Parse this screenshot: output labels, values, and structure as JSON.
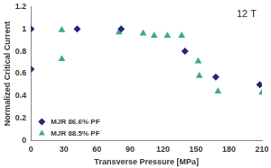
{
  "chart_data": {
    "type": "scatter",
    "annotation": "12 T",
    "x_label": "Transverse Pressure [MPa]",
    "y_label": "Normalized Critical Current",
    "xlim": [
      0,
      210
    ],
    "xticks": [
      0,
      30,
      60,
      90,
      120,
      150,
      180,
      210
    ],
    "ylim": [
      0,
      1.2
    ],
    "yticks": [
      0,
      0.2,
      0.4,
      0.6,
      0.8,
      1,
      1.2
    ],
    "grid": false,
    "legend": "lower left",
    "series": [
      {
        "name": "MJR 86.6% PF",
        "color": "#24247a",
        "marker": "diamond",
        "x": [
          0,
          0,
          42,
          82,
          140,
          168,
          208
        ],
        "values": [
          1.0,
          0.64,
          1.0,
          1.0,
          0.8,
          0.57,
          0.5
        ]
      },
      {
        "name": "MJR 88.5% PF",
        "color": "#3fa98a",
        "marker": "triangle",
        "x": [
          28,
          28,
          80,
          102,
          112,
          124,
          137,
          152,
          153,
          170,
          210
        ],
        "values": [
          0.99,
          0.73,
          0.97,
          0.96,
          0.94,
          0.94,
          0.94,
          0.71,
          0.58,
          0.44,
          0.43
        ]
      }
    ]
  }
}
